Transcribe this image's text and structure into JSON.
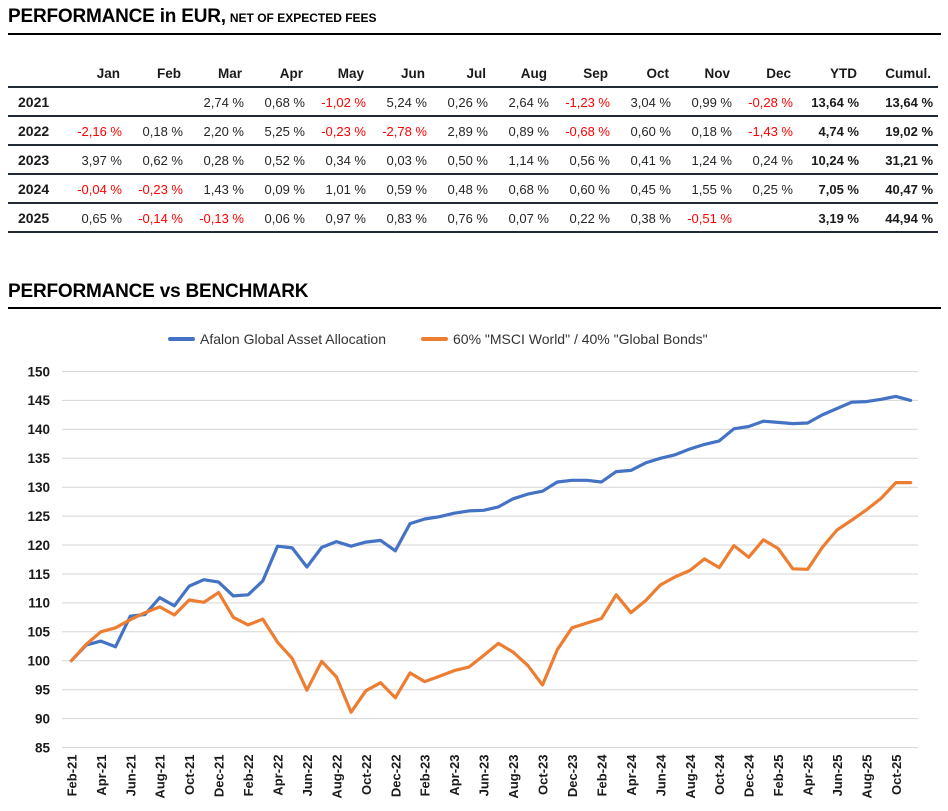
{
  "section_performance": {
    "title": "PERFORMANCE in EUR,",
    "title_suffix": "NET OF EXPECTED FEES",
    "table": {
      "col_headers": [
        "Jan",
        "Feb",
        "Mar",
        "Apr",
        "May",
        "Jun",
        "Jul",
        "Aug",
        "Sep",
        "Oct",
        "Nov",
        "Dec",
        "YTD",
        "Cumul."
      ],
      "negative_color": "#FF0000",
      "rows": [
        {
          "year": "2021",
          "monthly": [
            "",
            "",
            "2,74 %",
            "0,68 %",
            "-1,02 %",
            "5,24 %",
            "0,26 %",
            "2,64 %",
            "-1,23 %",
            "3,04 %",
            "0,99 %",
            "-0,28 %"
          ],
          "ytd": "13,64 %",
          "cumul": "13,64 %"
        },
        {
          "year": "2022",
          "monthly": [
            "-2,16 %",
            "0,18 %",
            "2,20 %",
            "5,25 %",
            "-0,23 %",
            "-2,78 %",
            "2,89 %",
            "0,89 %",
            "-0,68 %",
            "0,60 %",
            "0,18 %",
            "-1,43 %"
          ],
          "ytd": "4,74 %",
          "cumul": "19,02 %"
        },
        {
          "year": "2023",
          "monthly": [
            "3,97 %",
            "0,62 %",
            "0,28 %",
            "0,52 %",
            "0,34 %",
            "0,03 %",
            "0,50 %",
            "1,14 %",
            "0,56 %",
            "0,41 %",
            "1,24 %",
            "0,24 %"
          ],
          "ytd": "10,24 %",
          "cumul": "31,21 %"
        },
        {
          "year": "2024",
          "monthly": [
            "-0,04 %",
            "-0,23 %",
            "1,43 %",
            "0,09 %",
            "1,01 %",
            "0,59 %",
            "0,48 %",
            "0,68 %",
            "0,60 %",
            "0,45 %",
            "1,55 %",
            "0,25 %"
          ],
          "ytd": "7,05 %",
          "cumul": "40,47 %"
        },
        {
          "year": "2025",
          "monthly": [
            "0,65 %",
            "-0,14 %",
            "-0,13 %",
            "0,06 %",
            "0,97 %",
            "0,83 %",
            "0,76 %",
            "0,07 %",
            "0,22 %",
            "0,38 %",
            "-0,51 %",
            ""
          ],
          "ytd": "3,19 %",
          "cumul": "44,94 %"
        }
      ]
    }
  },
  "section_benchmark": {
    "title": "PERFORMANCE vs BENCHMARK"
  },
  "chart_data": {
    "type": "line",
    "title": "PERFORMANCE vs BENCHMARK",
    "ylim": [
      85,
      150
    ],
    "ytick_step": 5,
    "x_tick_every": 2,
    "grid": "horizontal",
    "grid_color": "#D6D6D6",
    "legend_position": "top",
    "x_months": [
      "Feb-21",
      "Mar-21",
      "Apr-21",
      "May-21",
      "Jun-21",
      "Jul-21",
      "Aug-21",
      "Sep-21",
      "Oct-21",
      "Nov-21",
      "Dec-21",
      "Jan-22",
      "Feb-22",
      "Mar-22",
      "Apr-22",
      "May-22",
      "Jun-22",
      "Jul-22",
      "Aug-22",
      "Sep-22",
      "Oct-22",
      "Nov-22",
      "Dec-22",
      "Jan-23",
      "Feb-23",
      "Mar-23",
      "Apr-23",
      "May-23",
      "Jun-23",
      "Jul-23",
      "Aug-23",
      "Sep-23",
      "Oct-23",
      "Nov-23",
      "Dec-23",
      "Jan-24",
      "Feb-24",
      "Mar-24",
      "Apr-24",
      "May-24",
      "Jun-24",
      "Jul-24",
      "Aug-24",
      "Sep-24",
      "Oct-24",
      "Nov-24",
      "Dec-24",
      "Jan-25",
      "Feb-25",
      "Mar-25",
      "Apr-25",
      "May-25",
      "Jun-25",
      "Jul-25",
      "Aug-25",
      "Sep-25",
      "Oct-25",
      "Nov-25"
    ],
    "series": [
      {
        "name": "Afalon Global Asset Allocation",
        "color": "#4472C4",
        "values": [
          100,
          102.7,
          103.4,
          102.4,
          107.7,
          108.0,
          110.9,
          109.5,
          112.9,
          114.0,
          113.6,
          111.2,
          111.4,
          113.8,
          119.8,
          119.5,
          116.2,
          119.6,
          120.6,
          119.8,
          120.5,
          120.8,
          119.0,
          123.7,
          124.5,
          124.9,
          125.5,
          125.9,
          126.0,
          126.6,
          128.0,
          128.8,
          129.3,
          130.9,
          131.2,
          131.2,
          130.9,
          132.7,
          132.9,
          134.2,
          135.0,
          135.6,
          136.6,
          137.4,
          138.0,
          140.1,
          140.5,
          141.4,
          141.2,
          141.0,
          141.1,
          142.5,
          143.6,
          144.7,
          144.8,
          145.2,
          145.7,
          145.0
        ]
      },
      {
        "name": "60% \"MSCI World\" / 40% \"Global Bonds\"",
        "color": "#ED7D31",
        "values": [
          100,
          102.8,
          105.0,
          105.7,
          107.1,
          108.3,
          109.3,
          107.9,
          110.5,
          110.1,
          111.8,
          107.5,
          106.2,
          107.2,
          103.2,
          100.4,
          94.9,
          99.9,
          97.2,
          91.1,
          94.8,
          96.2,
          93.6,
          97.9,
          96.4,
          97.3,
          98.3,
          98.9,
          100.9,
          103.0,
          101.5,
          99.2,
          95.8,
          101.9,
          105.7,
          106.5,
          107.3,
          111.4,
          108.3,
          110.4,
          113.1,
          114.5,
          115.6,
          117.6,
          116.1,
          119.9,
          117.9,
          120.9,
          119.4,
          115.9,
          115.8,
          119.6,
          122.6,
          124.3,
          126.1,
          128.1,
          130.8,
          130.8
        ]
      }
    ]
  }
}
